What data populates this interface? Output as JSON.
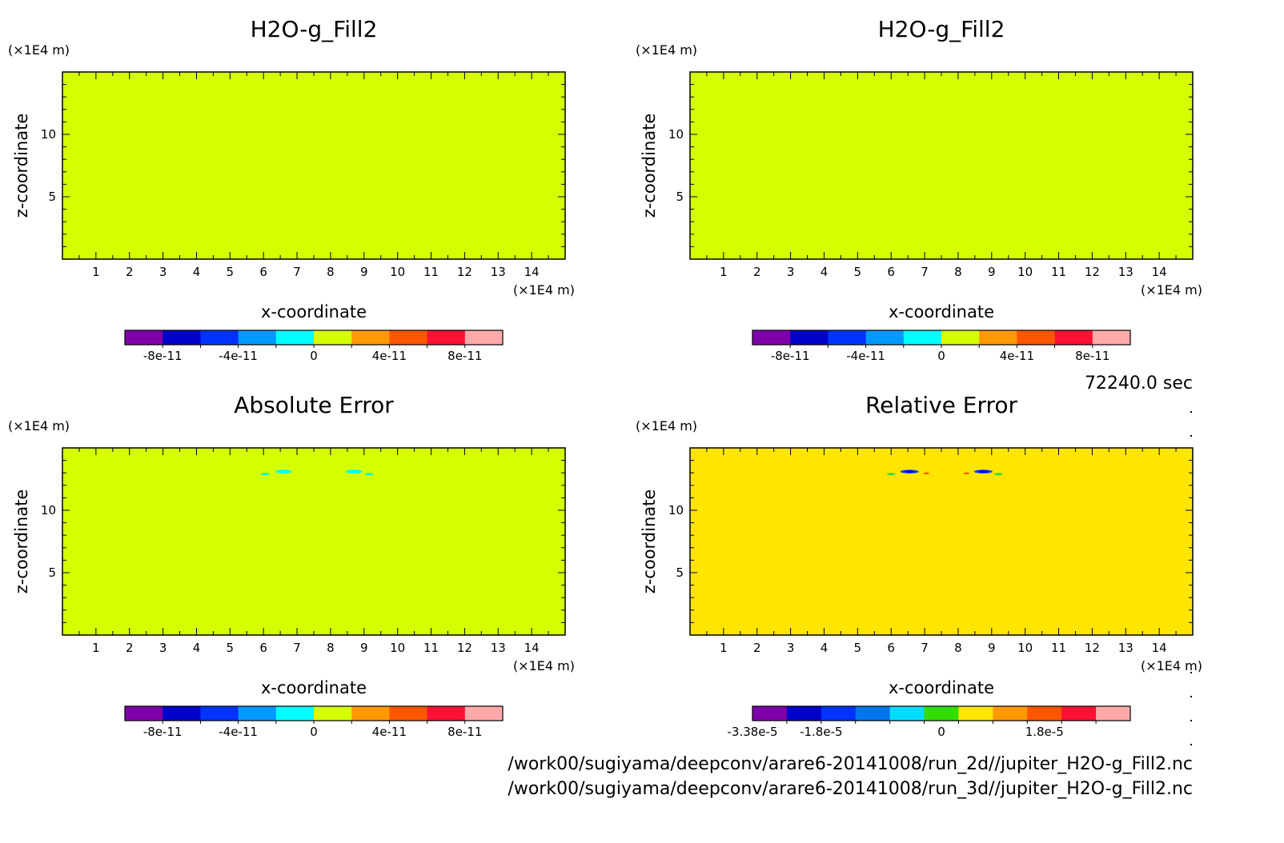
{
  "time_label": "72240.0 sec",
  "file_paths": [
    "/work00/sugiyama/deepconv/arare6-20141008/run_2d//jupiter_H2O-g_Fill2.nc",
    "/work00/sugiyama/deepconv/arare6-20141008/run_3d//jupiter_H2O-g_Fill2.nc"
  ],
  "chart_data": [
    {
      "type": "heatmap",
      "title": "H2O-g_Fill2",
      "xlabel": "x-coordinate",
      "ylabel": "z-coordinate",
      "x_unit": "(×1E4 m)",
      "y_unit": "(×1E4 m)",
      "xlim": [
        0,
        15
      ],
      "ylim": [
        0,
        15
      ],
      "x_ticks": [
        "1",
        "2",
        "3",
        "4",
        "5",
        "6",
        "7",
        "8",
        "9",
        "10",
        "11",
        "12",
        "13",
        "14"
      ],
      "y_ticks": [
        "5",
        "10"
      ],
      "field_color": "#d4ff00",
      "features": [],
      "colorbar": {
        "colors": [
          "#7f00aa",
          "#0000cc",
          "#0033ff",
          "#0099ff",
          "#00ffff",
          "#d4ff00",
          "#ff9900",
          "#ff5500",
          "#ff1133",
          "#ffaaaa"
        ],
        "labels": [
          "-8e-11",
          "-4e-11",
          "0",
          "4e-11",
          "8e-11"
        ],
        "label_positions": [
          1,
          3,
          5,
          7,
          9
        ]
      }
    },
    {
      "type": "heatmap",
      "title": "H2O-g_Fill2",
      "xlabel": "x-coordinate",
      "ylabel": "z-coordinate",
      "x_unit": "(×1E4 m)",
      "y_unit": "(×1E4 m)",
      "xlim": [
        0,
        15
      ],
      "ylim": [
        0,
        15
      ],
      "x_ticks": [
        "1",
        "2",
        "3",
        "4",
        "5",
        "6",
        "7",
        "8",
        "9",
        "10",
        "11",
        "12",
        "13",
        "14"
      ],
      "y_ticks": [
        "5",
        "10"
      ],
      "field_color": "#d4ff00",
      "features": [],
      "colorbar": {
        "colors": [
          "#7f00aa",
          "#0000cc",
          "#0033ff",
          "#0099ff",
          "#00ffff",
          "#d4ff00",
          "#ff9900",
          "#ff5500",
          "#ff1133",
          "#ffaaaa"
        ],
        "labels": [
          "-8e-11",
          "-4e-11",
          "0",
          "4e-11",
          "8e-11"
        ],
        "label_positions": [
          1,
          3,
          5,
          7,
          9
        ]
      }
    },
    {
      "type": "heatmap",
      "title": "Absolute Error",
      "xlabel": "x-coordinate",
      "ylabel": "z-coordinate",
      "x_unit": "(×1E4 m)",
      "y_unit": "(×1E4 m)",
      "xlim": [
        0,
        15
      ],
      "ylim": [
        0,
        15
      ],
      "x_ticks": [
        "1",
        "2",
        "3",
        "4",
        "5",
        "6",
        "7",
        "8",
        "9",
        "10",
        "11",
        "12",
        "13",
        "14"
      ],
      "y_ticks": [
        "5",
        "10"
      ],
      "field_color": "#d4ff00",
      "features": [
        {
          "x": 6.6,
          "z": 13.1,
          "w": 0.5,
          "h": 0.3,
          "color": "#00ffff"
        },
        {
          "x": 6.05,
          "z": 12.9,
          "w": 0.25,
          "h": 0.2,
          "color": "#00ffcc"
        },
        {
          "x": 8.7,
          "z": 13.1,
          "w": 0.5,
          "h": 0.3,
          "color": "#00ffff"
        },
        {
          "x": 9.15,
          "z": 12.9,
          "w": 0.25,
          "h": 0.2,
          "color": "#00ffcc"
        }
      ],
      "colorbar": {
        "colors": [
          "#7f00aa",
          "#0000cc",
          "#0033ff",
          "#0099ff",
          "#00ffff",
          "#d4ff00",
          "#ff9900",
          "#ff5500",
          "#ff1133",
          "#ffaaaa"
        ],
        "labels": [
          "-8e-11",
          "-4e-11",
          "0",
          "4e-11",
          "8e-11"
        ],
        "label_positions": [
          1,
          3,
          5,
          7,
          9
        ]
      }
    },
    {
      "type": "heatmap",
      "title": "Relative Error",
      "xlabel": "x-coordinate",
      "ylabel": "z-coordinate",
      "x_unit": "(×1E4 m)",
      "y_unit": "(×1E4 m)",
      "xlim": [
        0,
        15
      ],
      "ylim": [
        0,
        15
      ],
      "x_ticks": [
        "1",
        "2",
        "3",
        "4",
        "5",
        "6",
        "7",
        "8",
        "9",
        "10",
        "11",
        "12",
        "13",
        "14"
      ],
      "y_ticks": [
        "5",
        "10"
      ],
      "field_color": "#ffe500",
      "features": [
        {
          "x": 6.55,
          "z": 13.1,
          "w": 0.55,
          "h": 0.3,
          "color": "#0044ff"
        },
        {
          "x": 6.55,
          "z": 13.1,
          "w": 0.3,
          "h": 0.18,
          "color": "#0000cc"
        },
        {
          "x": 6.0,
          "z": 12.9,
          "w": 0.25,
          "h": 0.2,
          "color": "#33dd33"
        },
        {
          "x": 7.05,
          "z": 12.95,
          "w": 0.18,
          "h": 0.15,
          "color": "#ff5500"
        },
        {
          "x": 8.75,
          "z": 13.1,
          "w": 0.55,
          "h": 0.3,
          "color": "#0044ff"
        },
        {
          "x": 8.75,
          "z": 13.1,
          "w": 0.3,
          "h": 0.18,
          "color": "#0000cc"
        },
        {
          "x": 9.2,
          "z": 12.9,
          "w": 0.25,
          "h": 0.2,
          "color": "#33dd33"
        },
        {
          "x": 8.25,
          "z": 12.95,
          "w": 0.18,
          "h": 0.15,
          "color": "#ff5500"
        }
      ],
      "colorbar": {
        "colors": [
          "#7f00aa",
          "#0000cc",
          "#0033ff",
          "#0077ee",
          "#00ddff",
          "#33dd00",
          "#ffe500",
          "#ff9900",
          "#ff5500",
          "#ff1133",
          "#ffaaaa"
        ],
        "labels": [
          "-3.38e-5",
          "-1.8e-5",
          "0",
          "1.8e-5"
        ],
        "label_positions": [
          0,
          2,
          5.5,
          8.5
        ]
      }
    }
  ]
}
